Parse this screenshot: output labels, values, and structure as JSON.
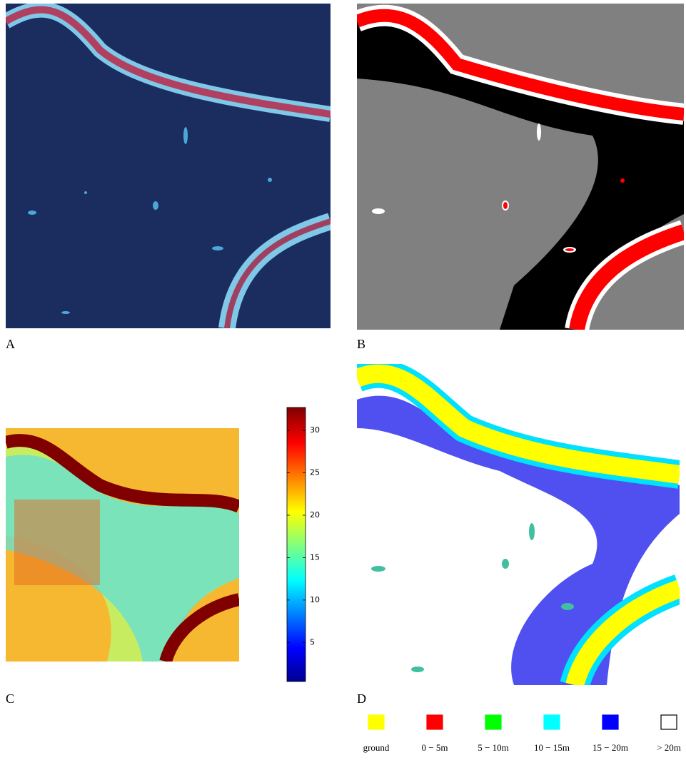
{
  "panels": [
    {
      "label": "A"
    },
    {
      "label": "B"
    },
    {
      "label": "C"
    },
    {
      "label": "D"
    }
  ],
  "colorbar": {
    "lim": [
      0.4,
      32.7
    ],
    "ticks": [
      5,
      10,
      15,
      20,
      25,
      30
    ]
  },
  "legend": [
    {
      "label": "ground",
      "color": "#ffff00"
    },
    {
      "label": "0 − 5m",
      "color": "#ff0000"
    },
    {
      "label": "5 − 10m",
      "color": "#00ff00"
    },
    {
      "label": "10 − 15m",
      "color": "#00ffff"
    },
    {
      "label": "15 − 20m",
      "color": "#0000ff"
    },
    {
      "label": "> 20m",
      "color": "#ffffff"
    }
  ]
}
